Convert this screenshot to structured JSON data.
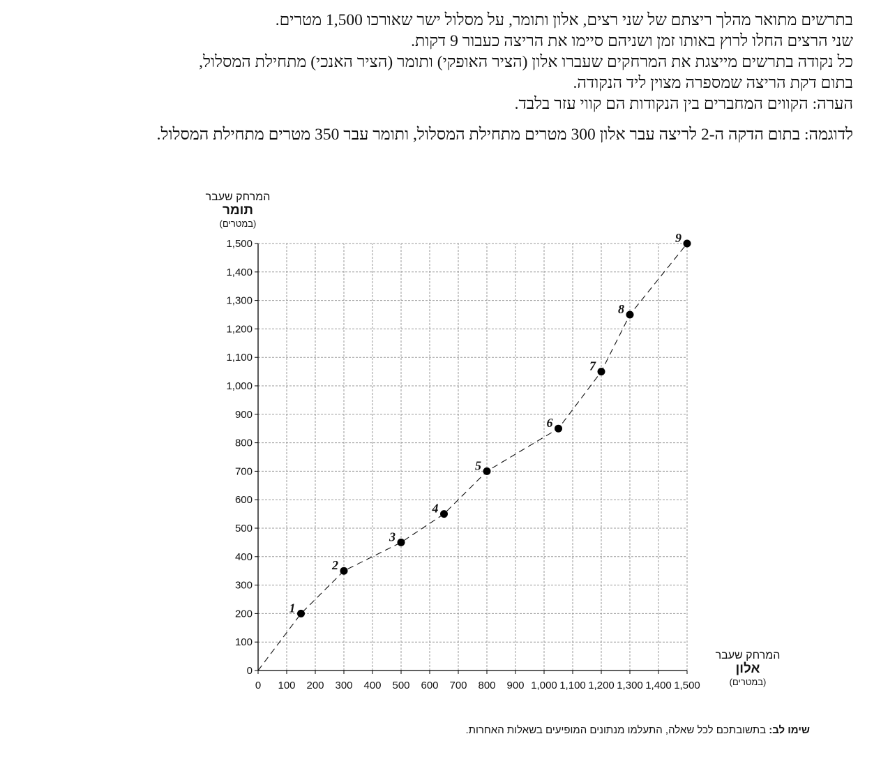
{
  "intro": {
    "line1": "בתרשים מתואר מהלך ריצתם של שני רצים, אלון ותומר, על מסלול ישר שאורכו 1,500 מטרים.",
    "line2": "שני הרצים החלו לרוץ באותו זמן ושניהם סיימו את הריצה כעבור 9 דקות.",
    "line3": "כל נקודה בתרשים מייצגת את המרחקים שעברו אלון (הציר האופקי) ותומר (הציר האנכי) מתחילת המסלול,",
    "line4": "בתום דקת הריצה שמספרה מצוין ליד הנקודה.",
    "line5": "הערה: הקווים המחברים בין הנקודות הם קווי עזר בלבד.",
    "example": "לדוגמה: בתום הדקה ה-2 לריצה עבר אלון 300 מטרים מתחילת המסלול, ותומר עבר 350 מטרים מתחילת המסלול."
  },
  "y_axis_title": {
    "line1": "המרחק שעבר",
    "line2": "תומר",
    "line3": "(במטרים)"
  },
  "x_axis_title": {
    "line1": "המרחק שעבר",
    "line2": "אלון",
    "line3": "(במטרים)"
  },
  "note": {
    "bold": "שימו לב:",
    "text": " בתשובתכם לכל שאלה, התעלמו מנתונים המופיעים בשאלות האחרות."
  },
  "chart_data": {
    "type": "scatter",
    "xlabel": "המרחק שעבר אלון (במטרים)",
    "ylabel": "המרחק שעבר תומר (במטרים)",
    "xlim": [
      0,
      1500
    ],
    "ylim": [
      0,
      1500
    ],
    "grid": true,
    "grid_step": 100,
    "connector": "dashed",
    "x_ticks": [
      "0",
      "100",
      "200",
      "300",
      "400",
      "500",
      "600",
      "700",
      "800",
      "900",
      "1,000",
      "1,100",
      "1,200",
      "1,300",
      "1,400",
      "1,500"
    ],
    "y_ticks": [
      "0",
      "100",
      "200",
      "300",
      "400",
      "500",
      "600",
      "700",
      "800",
      "900",
      "1,000",
      "1,100",
      "1,200",
      "1,300",
      "1,400",
      "1,500"
    ],
    "points": [
      {
        "label": "1",
        "x": 150,
        "y": 200
      },
      {
        "label": "2",
        "x": 300,
        "y": 350
      },
      {
        "label": "3",
        "x": 500,
        "y": 450
      },
      {
        "label": "4",
        "x": 650,
        "y": 550
      },
      {
        "label": "5",
        "x": 800,
        "y": 700
      },
      {
        "label": "6",
        "x": 1050,
        "y": 850
      },
      {
        "label": "7",
        "x": 1200,
        "y": 1050
      },
      {
        "label": "8",
        "x": 1300,
        "y": 1250
      },
      {
        "label": "9",
        "x": 1500,
        "y": 1500
      }
    ]
  }
}
